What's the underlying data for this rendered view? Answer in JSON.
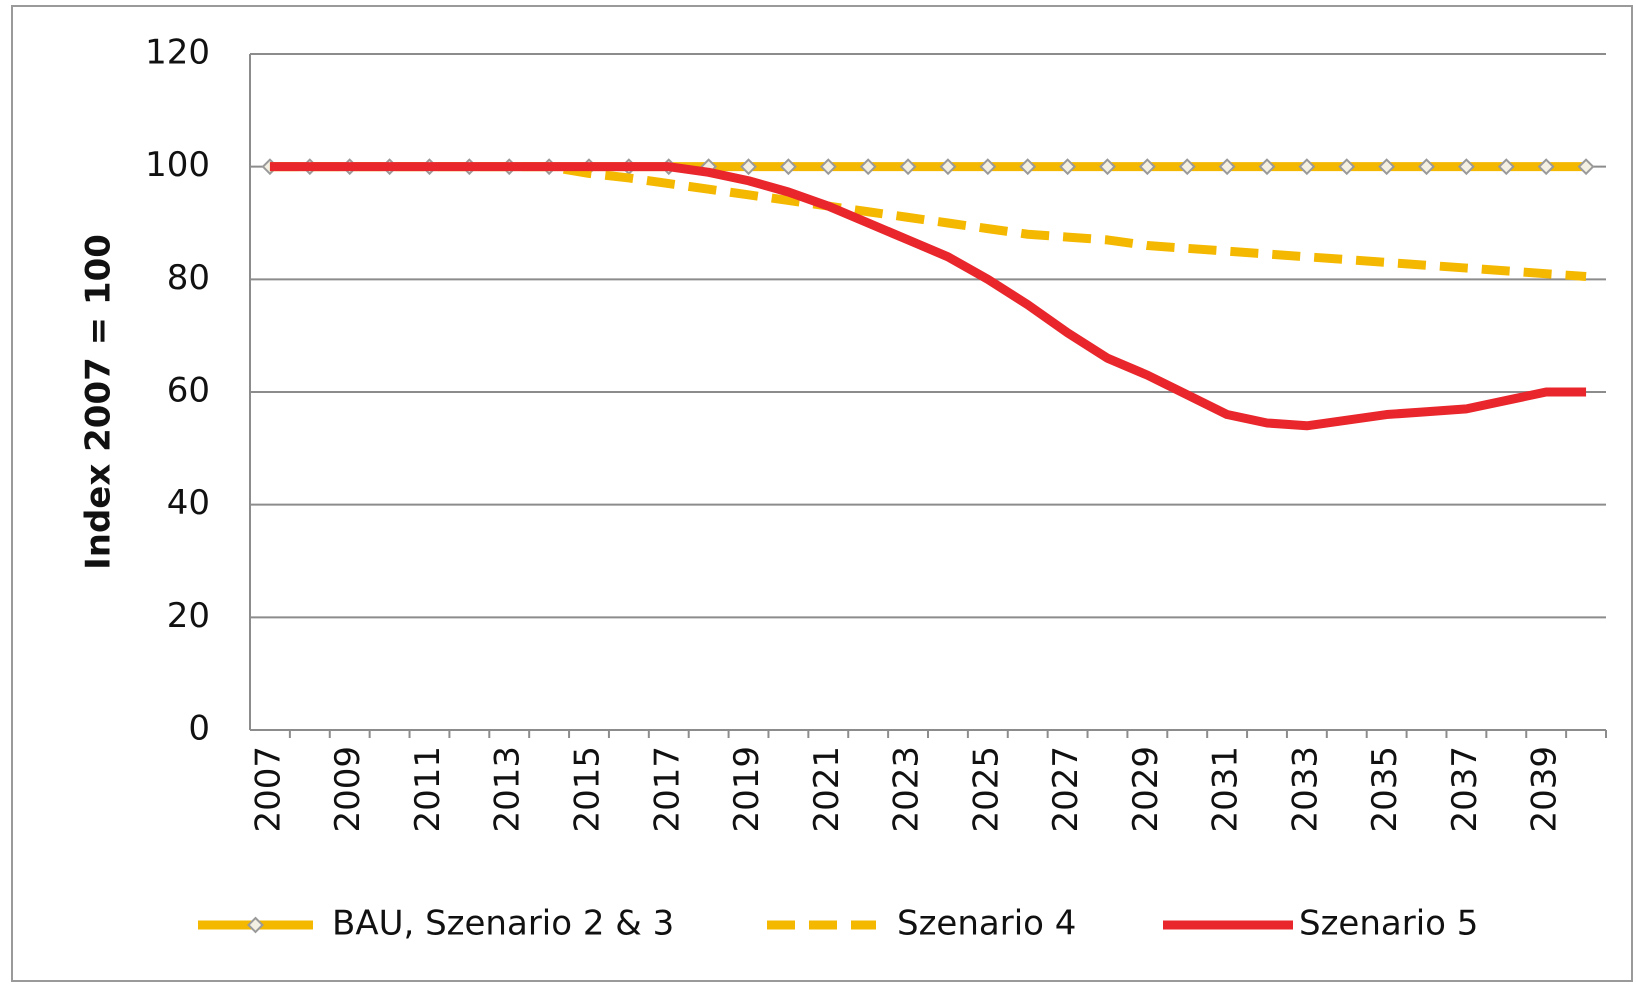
{
  "chart_data": {
    "type": "line",
    "y_label": "Index 2007 = 100",
    "categories": [
      "2007",
      null,
      "2009",
      null,
      "2011",
      null,
      "2013",
      null,
      "2015",
      null,
      "2017",
      null,
      "2019",
      null,
      "2021",
      null,
      "2023",
      null,
      "2025",
      null,
      "2027",
      null,
      "2029",
      null,
      "2031",
      null,
      "2033",
      null,
      "2035",
      null,
      "2037",
      null,
      "2039",
      null
    ],
    "ylim": [
      0,
      120
    ],
    "yticks": [
      0,
      20,
      40,
      60,
      80,
      100,
      120
    ],
    "grid": true,
    "legend": "bottom",
    "series": [
      {
        "name": "BAU, Szenario 2 & 3",
        "color": "#f5b800",
        "dash": "solid",
        "marker": "diamond",
        "values": [
          100,
          100,
          100,
          100,
          100,
          100,
          100,
          100,
          100,
          100,
          100,
          100,
          100,
          100,
          100,
          100,
          100,
          100,
          100,
          100,
          100,
          100,
          100,
          100,
          100,
          100,
          100,
          100,
          100,
          100,
          100,
          100,
          100,
          100
        ]
      },
      {
        "name": "Szenario 4",
        "color": "#f5b800",
        "dash": "dashed",
        "values": [
          100,
          100,
          100,
          100,
          100,
          100,
          100,
          100,
          98.8,
          98,
          97,
          96,
          95,
          94,
          93,
          92,
          91,
          90,
          89,
          88,
          87.5,
          87,
          86,
          85.5,
          85,
          84.5,
          84,
          83.5,
          83,
          82.5,
          82,
          81.5,
          81,
          80.5
        ]
      },
      {
        "name": "Szenario 5",
        "color": "#e8262b",
        "dash": "solid",
        "values": [
          100,
          100,
          100,
          100,
          100,
          100,
          100,
          100,
          100,
          100,
          100,
          99,
          97.5,
          95.5,
          93,
          90,
          87,
          84,
          80,
          75.5,
          70.5,
          66,
          63,
          59.5,
          56,
          54.5,
          54,
          55,
          56,
          56.5,
          57,
          58.5,
          60,
          60
        ]
      }
    ]
  }
}
